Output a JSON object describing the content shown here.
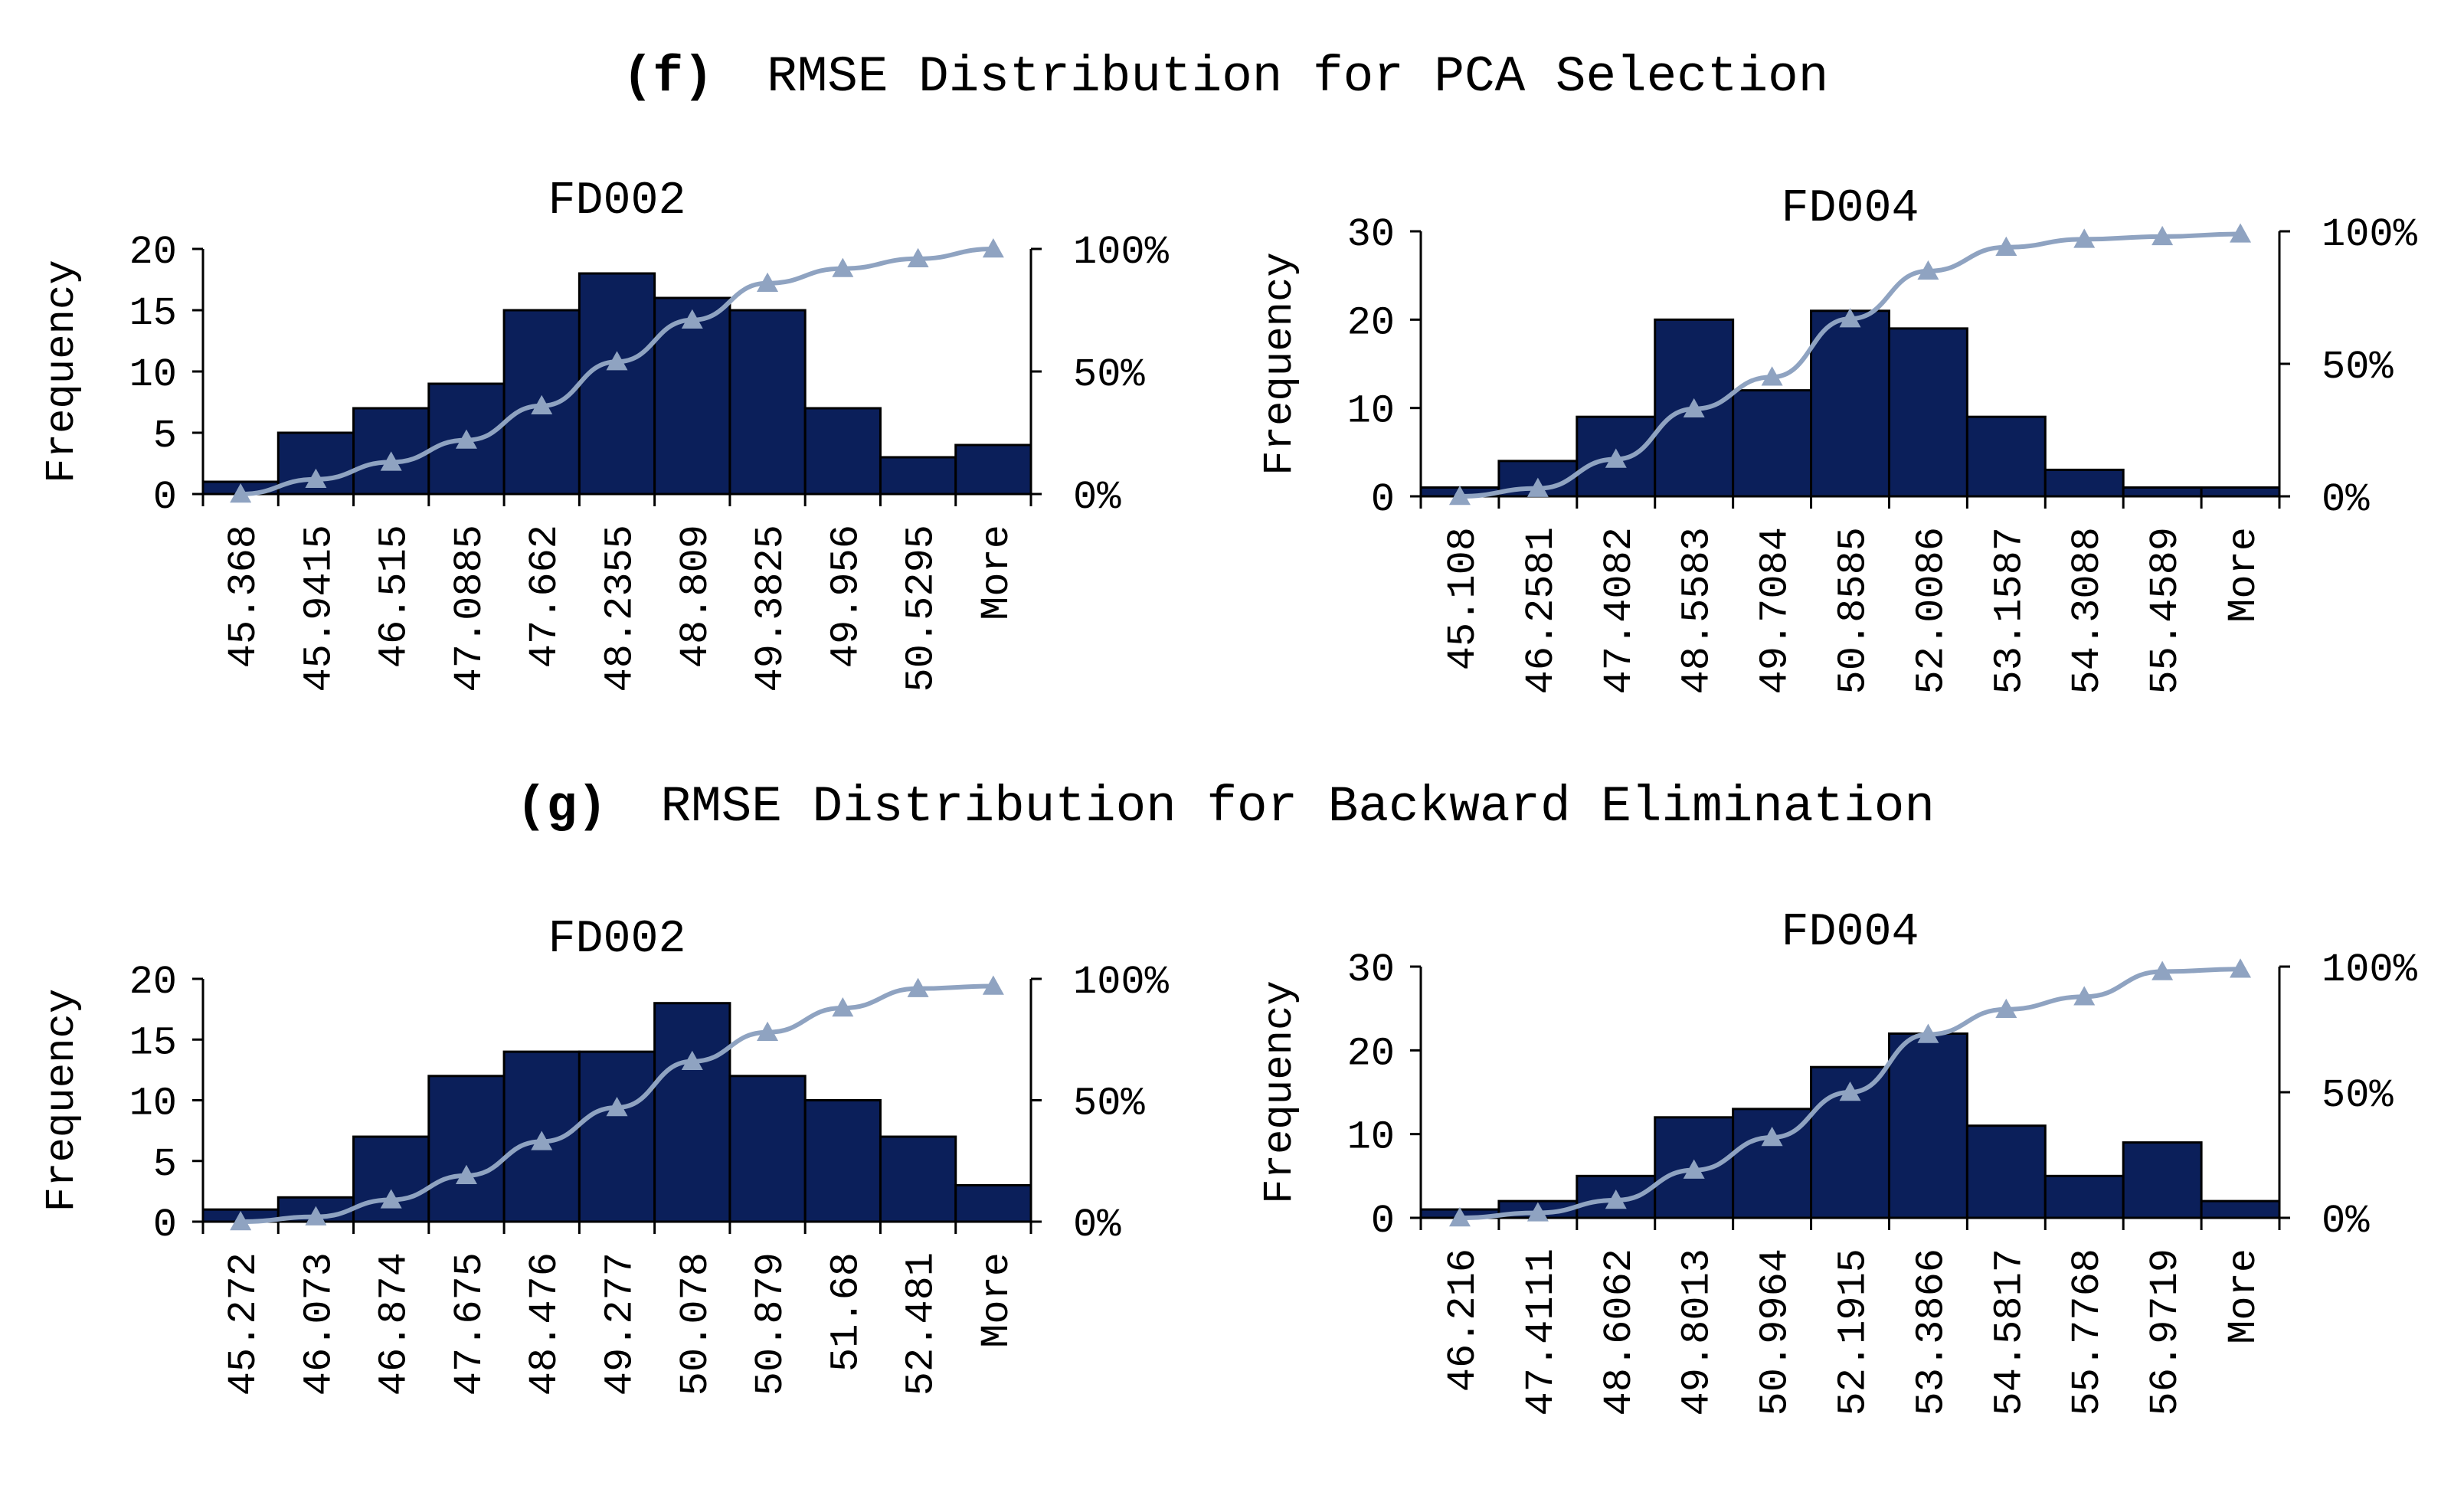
{
  "sections": [
    {
      "tag": "(f)",
      "title": "RMSE Distribution for PCA Selection"
    },
    {
      "tag": "(g)",
      "title": "RMSE Distribution for Backward Elimination"
    }
  ],
  "colors": {
    "bar": "#0b1f5a",
    "cumulative": "#8fa3c1"
  },
  "chart_data": [
    {
      "id": "f-fd002",
      "type": "bar",
      "section": "(f)",
      "title": "FD002",
      "ylabel": "Frequency",
      "xlabel": "",
      "categories": [
        "45.368",
        "45.9415",
        "46.515",
        "47.0885",
        "47.662",
        "48.2355",
        "48.809",
        "49.3825",
        "49.956",
        "50.5295",
        "More"
      ],
      "values": [
        1,
        5,
        7,
        9,
        15,
        18,
        16,
        15,
        7,
        3,
        4
      ],
      "ylim": [
        0,
        20
      ],
      "yticks": [
        "0",
        "5",
        "10",
        "15",
        "20"
      ],
      "y2ticks": [
        "0%",
        "50%",
        "100%"
      ],
      "cumulative_percent": [
        0.0,
        6.0,
        13.0,
        22.0,
        36.0,
        54.0,
        71.0,
        86.0,
        92.0,
        96.0,
        100.0
      ]
    },
    {
      "id": "f-fd004",
      "type": "bar",
      "section": "(f)",
      "title": "FD004",
      "ylabel": "Frequency",
      "xlabel": "",
      "categories": [
        "45.108",
        "46.2581",
        "47.4082",
        "48.5583",
        "49.7084",
        "50.8585",
        "52.0086",
        "53.1587",
        "54.3088",
        "55.4589",
        "More"
      ],
      "values": [
        1,
        4,
        9,
        20,
        12,
        21,
        19,
        9,
        3,
        1,
        1
      ],
      "ylim": [
        0,
        30
      ],
      "yticks": [
        "0",
        "10",
        "20",
        "30"
      ],
      "y2ticks": [
        "0%",
        "50%",
        "100%"
      ],
      "cumulative_percent": [
        0.0,
        3.0,
        14.0,
        33.0,
        45.0,
        67.0,
        85.0,
        94.0,
        97.0,
        98.0,
        99.0
      ]
    },
    {
      "id": "g-fd002",
      "type": "bar",
      "section": "(g)",
      "title": "FD002",
      "ylabel": "Frequency",
      "xlabel": "",
      "categories": [
        "45.272",
        "46.073",
        "46.874",
        "47.675",
        "48.476",
        "49.277",
        "50.078",
        "50.879",
        "51.68",
        "52.481",
        "More"
      ],
      "values": [
        1,
        2,
        7,
        12,
        14,
        14,
        18,
        12,
        10,
        7,
        3
      ],
      "ylim": [
        0,
        20
      ],
      "yticks": [
        "0",
        "5",
        "10",
        "15",
        "20"
      ],
      "y2ticks": [
        "0%",
        "50%",
        "100%"
      ],
      "cumulative_percent": [
        0.0,
        2.0,
        9.0,
        19.0,
        33.0,
        47.0,
        66.0,
        78.0,
        88.0,
        96.0,
        97.0
      ]
    },
    {
      "id": "g-fd004",
      "type": "bar",
      "section": "(g)",
      "title": "FD004",
      "ylabel": "Frequency",
      "xlabel": "",
      "categories": [
        "46.216",
        "47.4111",
        "48.6062",
        "49.8013",
        "50.9964",
        "52.1915",
        "53.3866",
        "54.5817",
        "55.7768",
        "56.9719",
        "More"
      ],
      "values": [
        1,
        2,
        5,
        12,
        13,
        18,
        22,
        11,
        5,
        9,
        2
      ],
      "ylim": [
        0,
        30
      ],
      "yticks": [
        "0",
        "10",
        "20",
        "30"
      ],
      "y2ticks": [
        "0%",
        "50%",
        "100%"
      ],
      "cumulative_percent": [
        0.0,
        2.0,
        7.0,
        19.0,
        32.0,
        50.0,
        73.0,
        83.0,
        88.0,
        98.0,
        99.0
      ]
    }
  ]
}
